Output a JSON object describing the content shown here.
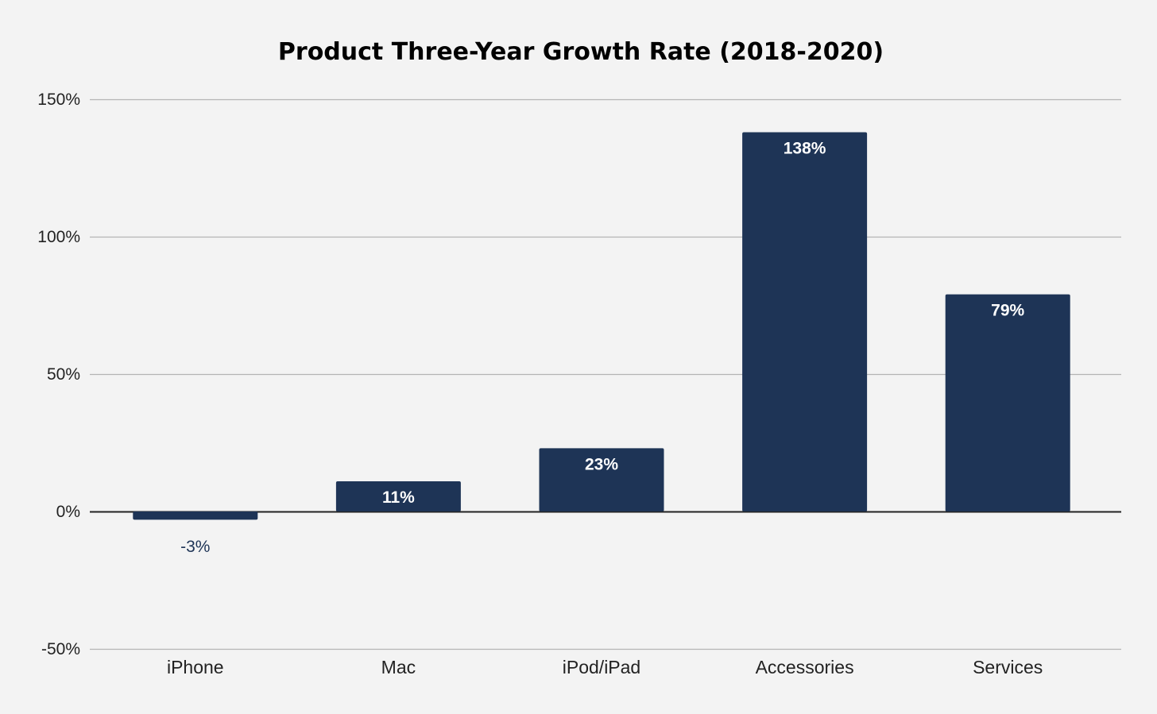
{
  "colors": {
    "background": "#f3f3f3",
    "bar": "#1e3456",
    "gridline": "#b4b4b4",
    "zeroline": "#222222",
    "text": "#222222"
  },
  "chart_data": {
    "type": "bar",
    "title": "Product Three-Year Growth Rate (2018-2020)",
    "xlabel": "",
    "ylabel": "",
    "categories": [
      "iPhone",
      "Mac",
      "iPod/iPad",
      "Accessories",
      "Services"
    ],
    "values": [
      -3,
      11,
      23,
      138,
      79
    ],
    "value_labels": [
      "-3%",
      "11%",
      "23%",
      "138%",
      "79%"
    ],
    "ylim": [
      -50,
      150
    ],
    "yticks": [
      -50,
      0,
      50,
      100,
      150
    ],
    "ytick_labels": [
      "-50%",
      "0%",
      "50%",
      "100%",
      "150%"
    ],
    "grid": true,
    "legend": "none"
  }
}
